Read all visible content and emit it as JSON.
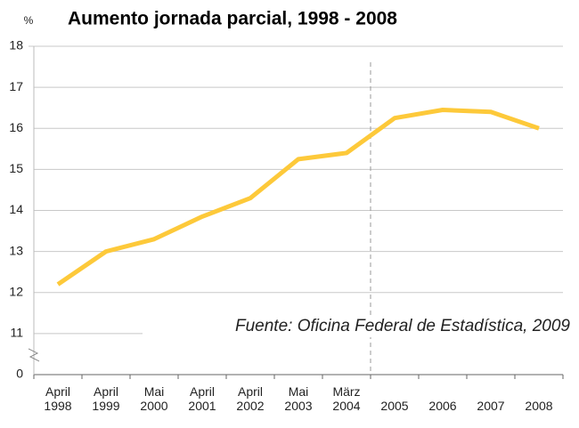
{
  "chart_data": {
    "type": "line",
    "title": "Aumento jornada parcial, 1998 - 2008",
    "y_unit": "%",
    "annotation": "Fuente: Oficina Federal de Estadística, 2009",
    "categories": [
      [
        "April",
        "1998"
      ],
      [
        "April",
        "1999"
      ],
      [
        "Mai",
        "2000"
      ],
      [
        "April",
        "2001"
      ],
      [
        "April",
        "2002"
      ],
      [
        "Mai",
        "2003"
      ],
      [
        "März",
        "2004"
      ],
      [
        "2005"
      ],
      [
        "2006"
      ],
      [
        "2007"
      ],
      [
        "2008"
      ]
    ],
    "series": [
      {
        "name": "Aumento jornada parcial",
        "color": "#fdc93a",
        "values": [
          12.2,
          13.0,
          13.3,
          13.85,
          14.3,
          15.25,
          15.4,
          16.25,
          16.45,
          16.4,
          16.0
        ]
      }
    ],
    "ylim": [
      0,
      18
    ],
    "yticks": [
      0,
      11,
      12,
      13,
      14,
      15,
      16,
      17,
      18
    ],
    "y_break": true,
    "grid": true
  }
}
